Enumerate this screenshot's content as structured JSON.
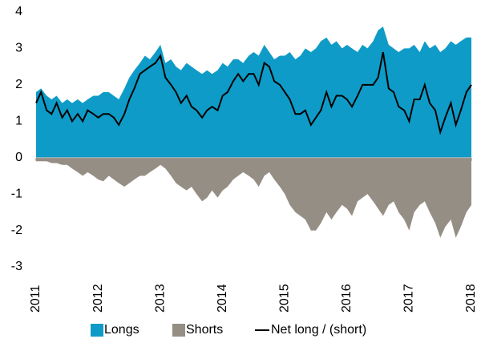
{
  "chart_data": {
    "type": "area",
    "x": [
      2011,
      2011.08,
      2011.17,
      2011.25,
      2011.33,
      2011.42,
      2011.5,
      2011.58,
      2011.67,
      2011.75,
      2011.83,
      2011.92,
      2012,
      2012.08,
      2012.17,
      2012.25,
      2012.33,
      2012.42,
      2012.5,
      2012.58,
      2012.67,
      2012.75,
      2012.83,
      2012.92,
      2013,
      2013.08,
      2013.17,
      2013.25,
      2013.33,
      2013.42,
      2013.5,
      2013.58,
      2013.67,
      2013.75,
      2013.83,
      2013.92,
      2014,
      2014.08,
      2014.17,
      2014.25,
      2014.33,
      2014.42,
      2014.5,
      2014.58,
      2014.67,
      2014.75,
      2014.83,
      2014.92,
      2015,
      2015.08,
      2015.17,
      2015.25,
      2015.33,
      2015.42,
      2015.5,
      2015.58,
      2015.67,
      2015.75,
      2015.83,
      2015.92,
      2016,
      2016.08,
      2016.17,
      2016.25,
      2016.33,
      2016.42,
      2016.5,
      2016.58,
      2016.67,
      2016.75,
      2016.83,
      2016.92,
      2017,
      2017.08,
      2017.17,
      2017.25,
      2017.33,
      2017.42,
      2017.5,
      2017.58,
      2017.67,
      2017.75,
      2017.83,
      2017.92,
      2018
    ],
    "series": [
      {
        "name": "Longs",
        "color": "#0f9bc7",
        "kind": "area",
        "values": [
          1.8,
          1.9,
          1.7,
          1.6,
          1.7,
          1.5,
          1.6,
          1.5,
          1.6,
          1.5,
          1.6,
          1.7,
          1.7,
          1.8,
          1.8,
          1.7,
          1.6,
          1.9,
          2.2,
          2.4,
          2.6,
          2.8,
          2.7,
          2.9,
          3.1,
          2.6,
          2.7,
          2.5,
          2.4,
          2.6,
          2.5,
          2.4,
          2.3,
          2.4,
          2.3,
          2.4,
          2.6,
          2.5,
          2.7,
          2.7,
          2.6,
          2.8,
          2.9,
          2.8,
          3.1,
          2.9,
          2.7,
          2.8,
          2.8,
          2.9,
          2.7,
          2.8,
          3.0,
          2.9,
          3.0,
          3.2,
          3.3,
          3.1,
          3.2,
          3.0,
          3.1,
          3.0,
          2.9,
          3.1,
          3.0,
          3.2,
          3.5,
          3.6,
          3.1,
          3.0,
          2.9,
          3.0,
          3.0,
          3.1,
          2.9,
          3.2,
          3.0,
          3.1,
          2.9,
          3.0,
          3.2,
          3.1,
          3.2,
          3.3,
          3.3
        ]
      },
      {
        "name": "Shorts",
        "color": "#958e85",
        "kind": "area",
        "values": [
          -0.1,
          -0.1,
          -0.1,
          -0.15,
          -0.15,
          -0.2,
          -0.2,
          -0.3,
          -0.4,
          -0.5,
          -0.4,
          -0.5,
          -0.6,
          -0.65,
          -0.5,
          -0.6,
          -0.7,
          -0.8,
          -0.7,
          -0.6,
          -0.5,
          -0.5,
          -0.4,
          -0.3,
          -0.2,
          -0.3,
          -0.5,
          -0.7,
          -0.8,
          -0.9,
          -0.8,
          -1.0,
          -1.2,
          -1.1,
          -0.9,
          -1.1,
          -0.9,
          -0.8,
          -0.6,
          -0.5,
          -0.4,
          -0.5,
          -0.6,
          -0.8,
          -0.5,
          -0.4,
          -0.6,
          -0.8,
          -1.0,
          -1.3,
          -1.5,
          -1.6,
          -1.7,
          -2.0,
          -2.0,
          -1.8,
          -1.5,
          -1.7,
          -1.5,
          -1.3,
          -1.4,
          -1.6,
          -1.2,
          -1.1,
          -1.0,
          -1.2,
          -1.4,
          -1.6,
          -1.3,
          -1.2,
          -1.5,
          -1.7,
          -2.0,
          -1.5,
          -1.3,
          -1.2,
          -1.5,
          -1.8,
          -2.2,
          -1.9,
          -1.7,
          -2.2,
          -1.9,
          -1.5,
          -1.3
        ]
      },
      {
        "name": "Net long / (short)",
        "color": "#000000",
        "kind": "line",
        "values": [
          1.5,
          1.8,
          1.3,
          1.2,
          1.5,
          1.1,
          1.3,
          1.0,
          1.2,
          1.0,
          1.3,
          1.2,
          1.1,
          1.2,
          1.2,
          1.1,
          0.9,
          1.2,
          1.6,
          1.9,
          2.3,
          2.4,
          2.5,
          2.6,
          2.8,
          2.2,
          2.0,
          1.8,
          1.5,
          1.7,
          1.4,
          1.3,
          1.1,
          1.3,
          1.4,
          1.3,
          1.7,
          1.8,
          2.1,
          2.3,
          2.1,
          2.3,
          2.3,
          2.0,
          2.6,
          2.5,
          2.1,
          2.0,
          1.8,
          1.6,
          1.2,
          1.2,
          1.3,
          0.9,
          1.1,
          1.3,
          1.8,
          1.4,
          1.7,
          1.7,
          1.6,
          1.4,
          1.7,
          2.0,
          2.0,
          2.0,
          2.2,
          2.9,
          1.9,
          1.8,
          1.4,
          1.3,
          1.0,
          1.6,
          1.6,
          2.0,
          1.5,
          1.3,
          0.7,
          1.1,
          1.5,
          0.9,
          1.3,
          1.8,
          2.0
        ]
      }
    ],
    "xlim": [
      2011,
      2018
    ],
    "xticks": [
      2011,
      2012,
      2013,
      2014,
      2015,
      2016,
      2017,
      2018
    ],
    "ylim": [
      -3,
      4
    ],
    "yticks": [
      -3,
      -2,
      -1,
      0,
      1,
      2,
      3,
      4
    ],
    "legend": "bottom"
  }
}
